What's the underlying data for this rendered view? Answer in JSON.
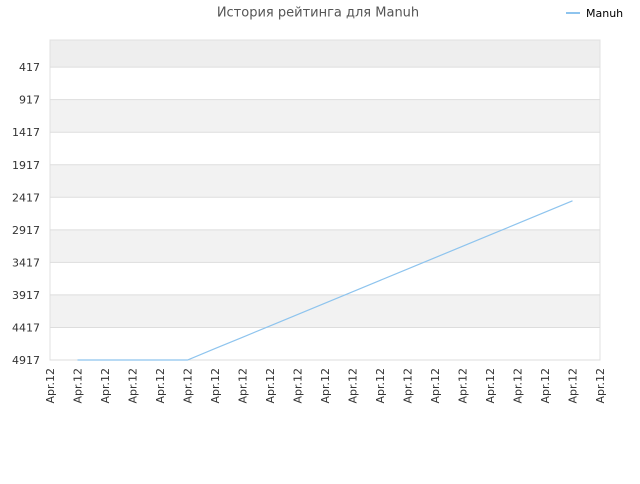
{
  "chart_data": {
    "type": "line",
    "title": "История рейтинга для Manuh",
    "categories": [
      "Apr.12",
      "Apr.12",
      "Apr.12",
      "Apr.12",
      "Apr.12",
      "Apr.12",
      "Apr.12",
      "Apr.12",
      "Apr.12",
      "Apr.12",
      "Apr.12",
      "Apr.12",
      "Apr.12",
      "Apr.12",
      "Apr.12",
      "Apr.12",
      "Apr.12",
      "Apr.12",
      "Apr.12",
      "Apr.12",
      "Apr.12"
    ],
    "series": [
      {
        "name": "Manuh",
        "color": "#8ec4ee",
        "values": [
          null,
          4917,
          4917,
          4917,
          4917,
          4917,
          4742,
          4568,
          4393,
          4218,
          4044,
          3869,
          3694,
          3520,
          3345,
          3170,
          2996,
          2821,
          2646,
          2471,
          null
        ]
      }
    ],
    "ylim": [
      4917,
      0
    ],
    "yticks": [
      417,
      917,
      1417,
      1917,
      2417,
      2917,
      3417,
      3917,
      4417,
      4917
    ],
    "grid": true,
    "legend": "top-right"
  }
}
